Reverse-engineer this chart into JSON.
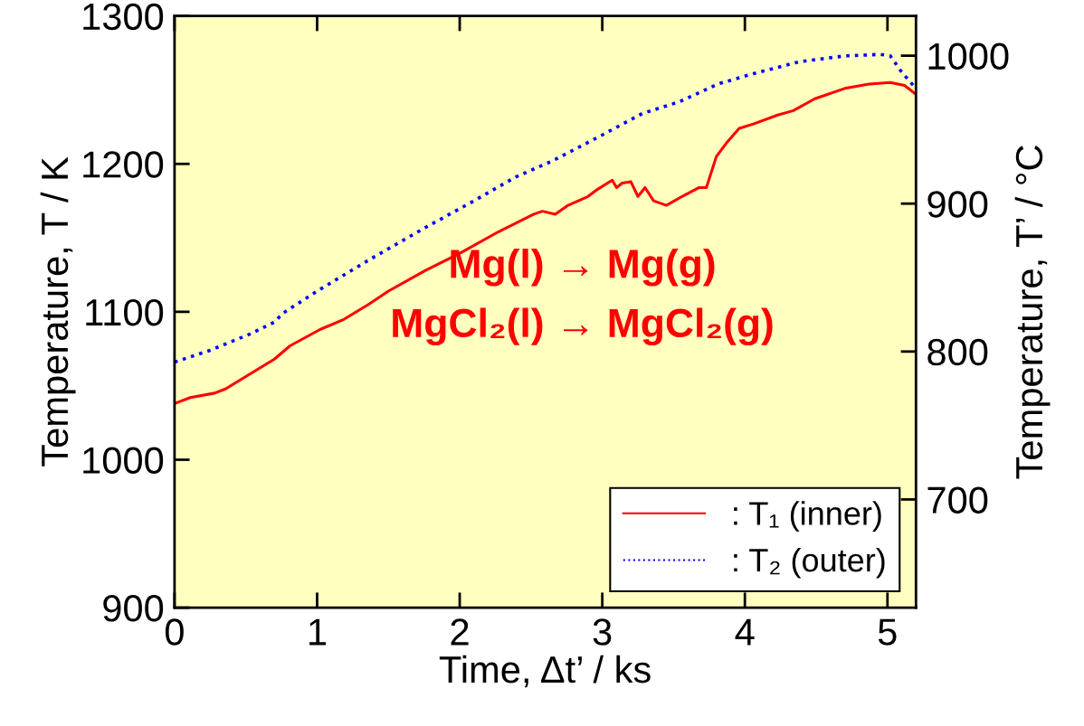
{
  "chart_data": {
    "type": "line",
    "xlabel": "Time, Δt’ / ks",
    "ylabel": "Temperature, T / K",
    "y2label": "Temperature, T’ / °C",
    "xlim": [
      0,
      5.2
    ],
    "xticks": [
      0,
      1,
      2,
      3,
      4,
      5
    ],
    "ylim": [
      900,
      1300
    ],
    "yticks": [
      900,
      1000,
      1100,
      1200,
      1300
    ],
    "y2lim": [
      626.85,
      1026.85
    ],
    "y2ticks": [
      700,
      800,
      900,
      1000
    ],
    "grid": false,
    "legend": "bottom right",
    "annotations": [
      "Mg(l) → Mg(g)",
      "MgCl₂(l) → MgCl₂(g)"
    ],
    "series": [
      {
        "name": ": T₁ (inner)",
        "color": "#ff0000",
        "line_style": "solid",
        "x": [
          0,
          0.11,
          0.28,
          0.36,
          0.7,
          0.81,
          1.02,
          1.19,
          1.36,
          1.5,
          1.76,
          2.01,
          2.27,
          2.52,
          2.58,
          2.67,
          2.76,
          2.9,
          2.97,
          3.07,
          3.1,
          3.14,
          3.2,
          3.25,
          3.3,
          3.36,
          3.45,
          3.56,
          3.68,
          3.73,
          3.8,
          3.87,
          3.96,
          4.06,
          4.23,
          4.34,
          4.49,
          4.7,
          4.87,
          5.02,
          5.12,
          5.2
        ],
        "values": [
          1038,
          1042,
          1045,
          1048,
          1068,
          1077,
          1088,
          1095,
          1105,
          1114,
          1128,
          1140,
          1154,
          1166,
          1168,
          1166,
          1172,
          1178,
          1183,
          1189,
          1184,
          1187,
          1188,
          1178,
          1184,
          1175,
          1172,
          1178,
          1184,
          1184,
          1205,
          1214,
          1224,
          1227,
          1233,
          1236,
          1244,
          1251,
          1254,
          1255,
          1253,
          1247
        ]
      },
      {
        "name": ": T₂ (outer)",
        "color": "#0000ff",
        "line_style": "dotted",
        "x": [
          0,
          0.25,
          0.53,
          0.7,
          0.76,
          1.0,
          1.38,
          1.76,
          2.1,
          2.39,
          2.65,
          2.97,
          3.28,
          3.54,
          3.81,
          4.06,
          4.38,
          4.7,
          4.95,
          5.02,
          5.1,
          5.2
        ],
        "values": [
          1066,
          1074,
          1085,
          1093,
          1099,
          1114,
          1136,
          1157,
          1175,
          1191,
          1202,
          1218,
          1234,
          1242,
          1254,
          1261,
          1269,
          1273,
          1274,
          1273,
          1262,
          1251
        ]
      }
    ]
  }
}
